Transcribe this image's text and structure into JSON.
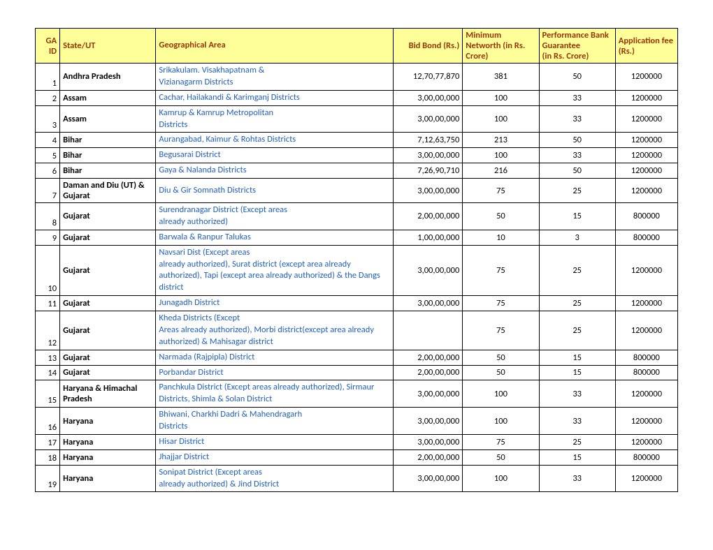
{
  "table": {
    "headers": {
      "ga_id": "GA ID",
      "state": "State/UT",
      "geo": "Geographical Area",
      "bid": "Bid Bond (Rs.)",
      "networth": "Minimum Networth (in Rs. Crore)",
      "perf": "Performance Bank Guarantee\n(in Rs. Crore)",
      "appfee": "Application fee (Rs.)"
    },
    "header_bg": "#ffff99",
    "header_color": "#993300",
    "link_color": "#2060c0",
    "border_color": "#000000",
    "rows": [
      {
        "id": "1",
        "state": "Andhra Pradesh",
        "geo": "Srikakulam. Visakhapatnam &\n Vizianagarm Districts",
        "bid": "12,70,77,870",
        "net": "381",
        "perf": "50",
        "app": "1200000"
      },
      {
        "id": "2",
        "state": "Assam",
        "geo": "Cachar, Hailakandi & Karimganj Districts",
        "bid": "3,00,00,000",
        "net": "100",
        "perf": "33",
        "app": "1200000"
      },
      {
        "id": "3",
        "state": "Assam",
        "geo": "Kamrup & Kamrup Metropolitan\nDistricts",
        "bid": "3,00,00,000",
        "net": "100",
        "perf": "33",
        "app": "1200000"
      },
      {
        "id": "4",
        "state": "Bihar",
        "geo": "Aurangabad, Kaimur & Rohtas Districts",
        "bid": "7,12,63,750",
        "net": "213",
        "perf": "50",
        "app": "1200000"
      },
      {
        "id": "5",
        "state": "Bihar",
        "geo": "Begusarai District",
        "bid": "3,00,00,000",
        "net": "100",
        "perf": "33",
        "app": "1200000"
      },
      {
        "id": "6",
        "state": "Bihar",
        "geo": "Gaya & Nalanda Districts",
        "bid": "7,26,90,710",
        "net": "216",
        "perf": "50",
        "app": "1200000"
      },
      {
        "id": "7",
        "state": "Daman and Diu (UT) & Gujarat",
        "geo": "Diu & Gir Somnath Districts",
        "bid": "3,00,00,000",
        "net": "75",
        "perf": "25",
        "app": "1200000"
      },
      {
        "id": "8",
        "state": "Gujarat",
        "geo": "Surendranagar District (Except areas\n already authorized)",
        "bid": "2,00,00,000",
        "net": "50",
        "perf": "15",
        "app": "800000"
      },
      {
        "id": "9",
        "state": "Gujarat",
        "geo": "Barwala & Ranpur Talukas",
        "bid": "1,00,00,000",
        "net": "10",
        "perf": "3",
        "app": "800000"
      },
      {
        "id": "10",
        "state": "Gujarat",
        "geo": "Navsari Dist (Except areas\n already authorized), Surat district (except area already authorized), Tapi (except area already authorized) & the Dangs district",
        "bid": "3,00,00,000",
        "net": "75",
        "perf": "25",
        "app": "1200000"
      },
      {
        "id": "11",
        "state": "Gujarat",
        "geo": "Junagadh District",
        "bid": "3,00,00,000",
        "net": "75",
        "perf": "25",
        "app": "1200000"
      },
      {
        "id": "12",
        "state": "Gujarat",
        "geo": "Kheda Districts (Except\n Areas already authorized), Morbi district(except area already authorized) & Mahisagar district",
        "bid": "",
        "net": "75",
        "perf": "25",
        "app": "1200000"
      },
      {
        "id": "13",
        "state": "Gujarat",
        "geo": "Narmada (Rajpipla) District",
        "bid": "2,00,00,000",
        "net": "50",
        "perf": "15",
        "app": "800000"
      },
      {
        "id": "14",
        "state": "Gujarat",
        "geo": "Porbandar District",
        "bid": "2,00,00,000",
        "net": "50",
        "perf": "15",
        "app": "800000"
      },
      {
        "id": "15",
        "state": "Haryana & Himachal Pradesh",
        "geo": "Panchkula District  (Except areas already authorized),  Sirmaur Districts, Shimla & Solan District",
        "bid": "3,00,00,000",
        "net": "100",
        "perf": "33",
        "app": "1200000"
      },
      {
        "id": "16",
        "state": "Haryana",
        "geo": "Bhiwani, Charkhi Dadri & Mahendragarh\n Districts",
        "bid": "3,00,00,000",
        "net": "100",
        "perf": "33",
        "app": "1200000"
      },
      {
        "id": "17",
        "state": "Haryana",
        "geo": "Hisar District",
        "bid": "3,00,00,000",
        "net": "75",
        "perf": "25",
        "app": "1200000"
      },
      {
        "id": "18",
        "state": "Haryana",
        "geo": "Jhajjar District",
        "bid": "2,00,00,000",
        "net": "50",
        "perf": "15",
        "app": "800000"
      },
      {
        "id": "19",
        "state": "Haryana",
        "geo": "Sonipat District (Except areas\n already authorized) & Jind District",
        "bid": "3,00,00,000",
        "net": "100",
        "perf": "33",
        "app": "1200000"
      }
    ]
  }
}
